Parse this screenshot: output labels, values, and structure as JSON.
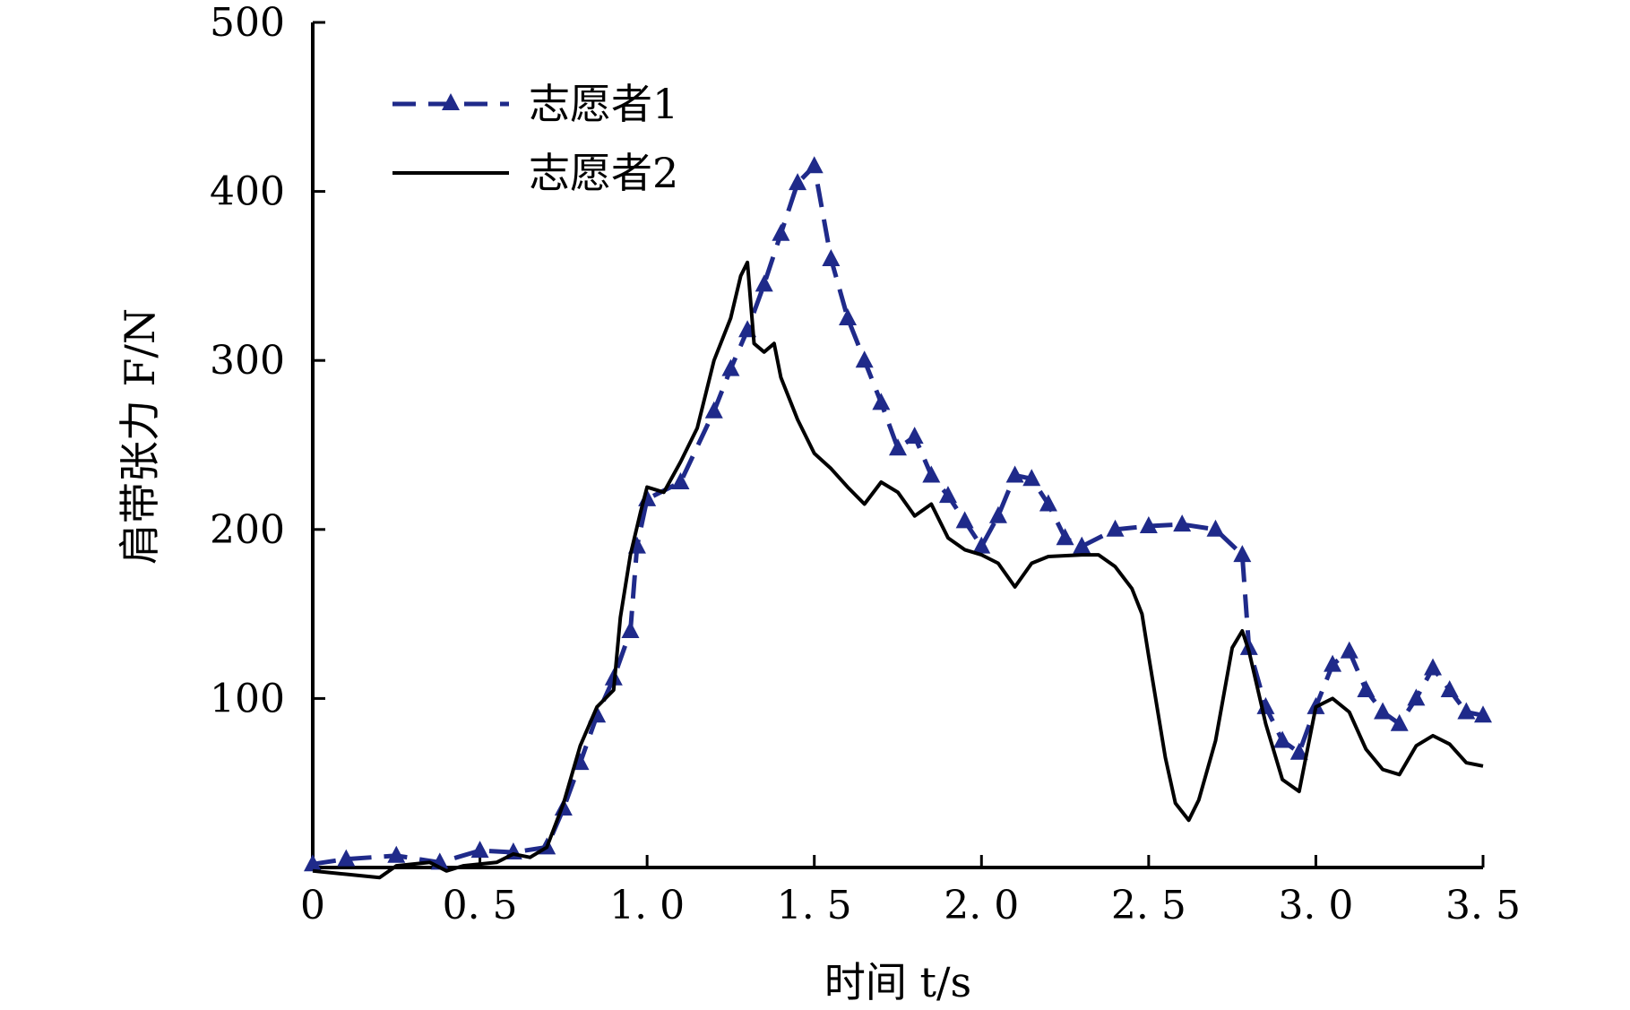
{
  "chart_data": {
    "type": "line",
    "xlabel": "时间 t/s",
    "ylabel": "肩带张力 F/N",
    "xlim": [
      0,
      3.5
    ],
    "ylim": [
      0,
      500
    ],
    "x_ticks": [
      "0",
      "0.5",
      "1.0",
      "1.5",
      "2.0",
      "2.5",
      "3.0",
      "3.5"
    ],
    "y_ticks": [
      "100",
      "200",
      "300",
      "400",
      "500"
    ],
    "legend_position": "top-left",
    "grid": false,
    "series": [
      {
        "name": "志愿者1",
        "color": "#1f2a8a",
        "style": "dashed-triangle",
        "points": [
          [
            0,
            2
          ],
          [
            0.1,
            5
          ],
          [
            0.25,
            7
          ],
          [
            0.38,
            3
          ],
          [
            0.5,
            10
          ],
          [
            0.6,
            9
          ],
          [
            0.7,
            12
          ],
          [
            0.75,
            35
          ],
          [
            0.8,
            62
          ],
          [
            0.85,
            90
          ],
          [
            0.9,
            112
          ],
          [
            0.95,
            140
          ],
          [
            0.97,
            190
          ],
          [
            1.0,
            218
          ],
          [
            1.1,
            228
          ],
          [
            1.2,
            270
          ],
          [
            1.25,
            295
          ],
          [
            1.3,
            318
          ],
          [
            1.35,
            345
          ],
          [
            1.4,
            375
          ],
          [
            1.45,
            405
          ],
          [
            1.5,
            415
          ],
          [
            1.55,
            360
          ],
          [
            1.6,
            325
          ],
          [
            1.65,
            300
          ],
          [
            1.7,
            275
          ],
          [
            1.75,
            248
          ],
          [
            1.8,
            255
          ],
          [
            1.85,
            232
          ],
          [
            1.9,
            220
          ],
          [
            1.95,
            205
          ],
          [
            2.0,
            190
          ],
          [
            2.05,
            208
          ],
          [
            2.1,
            232
          ],
          [
            2.15,
            230
          ],
          [
            2.2,
            215
          ],
          [
            2.25,
            195
          ],
          [
            2.3,
            190
          ],
          [
            2.4,
            200
          ],
          [
            2.5,
            202
          ],
          [
            2.6,
            203
          ],
          [
            2.7,
            200
          ],
          [
            2.78,
            185
          ],
          [
            2.8,
            130
          ],
          [
            2.85,
            95
          ],
          [
            2.9,
            75
          ],
          [
            2.95,
            68
          ],
          [
            3.0,
            95
          ],
          [
            3.05,
            120
          ],
          [
            3.1,
            128
          ],
          [
            3.15,
            105
          ],
          [
            3.2,
            92
          ],
          [
            3.25,
            85
          ],
          [
            3.3,
            100
          ],
          [
            3.35,
            118
          ],
          [
            3.4,
            105
          ],
          [
            3.45,
            92
          ],
          [
            3.5,
            90
          ]
        ]
      },
      {
        "name": "志愿者2",
        "color": "#000000",
        "style": "solid",
        "points": [
          [
            0,
            -2
          ],
          [
            0.1,
            -4
          ],
          [
            0.2,
            -6
          ],
          [
            0.25,
            1
          ],
          [
            0.35,
            3
          ],
          [
            0.4,
            -2
          ],
          [
            0.45,
            1
          ],
          [
            0.55,
            3
          ],
          [
            0.6,
            8
          ],
          [
            0.65,
            6
          ],
          [
            0.7,
            12
          ],
          [
            0.75,
            38
          ],
          [
            0.8,
            72
          ],
          [
            0.85,
            95
          ],
          [
            0.9,
            105
          ],
          [
            0.92,
            148
          ],
          [
            0.95,
            185
          ],
          [
            0.98,
            210
          ],
          [
            1.0,
            225
          ],
          [
            1.05,
            222
          ],
          [
            1.1,
            240
          ],
          [
            1.15,
            260
          ],
          [
            1.2,
            300
          ],
          [
            1.25,
            325
          ],
          [
            1.28,
            350
          ],
          [
            1.3,
            358
          ],
          [
            1.32,
            310
          ],
          [
            1.35,
            305
          ],
          [
            1.38,
            310
          ],
          [
            1.4,
            290
          ],
          [
            1.45,
            265
          ],
          [
            1.5,
            245
          ],
          [
            1.55,
            236
          ],
          [
            1.6,
            225
          ],
          [
            1.65,
            215
          ],
          [
            1.7,
            228
          ],
          [
            1.75,
            222
          ],
          [
            1.8,
            208
          ],
          [
            1.85,
            215
          ],
          [
            1.9,
            195
          ],
          [
            1.95,
            188
          ],
          [
            2.0,
            185
          ],
          [
            2.05,
            180
          ],
          [
            2.1,
            166
          ],
          [
            2.15,
            180
          ],
          [
            2.2,
            184
          ],
          [
            2.3,
            185
          ],
          [
            2.35,
            185
          ],
          [
            2.4,
            178
          ],
          [
            2.45,
            165
          ],
          [
            2.48,
            150
          ],
          [
            2.5,
            125
          ],
          [
            2.55,
            65
          ],
          [
            2.58,
            38
          ],
          [
            2.62,
            28
          ],
          [
            2.65,
            40
          ],
          [
            2.7,
            75
          ],
          [
            2.75,
            130
          ],
          [
            2.78,
            140
          ],
          [
            2.8,
            128
          ],
          [
            2.85,
            85
          ],
          [
            2.9,
            52
          ],
          [
            2.95,
            45
          ],
          [
            3.0,
            95
          ],
          [
            3.05,
            100
          ],
          [
            3.1,
            92
          ],
          [
            3.15,
            70
          ],
          [
            3.2,
            58
          ],
          [
            3.25,
            55
          ],
          [
            3.3,
            72
          ],
          [
            3.35,
            78
          ],
          [
            3.4,
            73
          ],
          [
            3.45,
            62
          ],
          [
            3.5,
            60
          ]
        ]
      }
    ]
  }
}
